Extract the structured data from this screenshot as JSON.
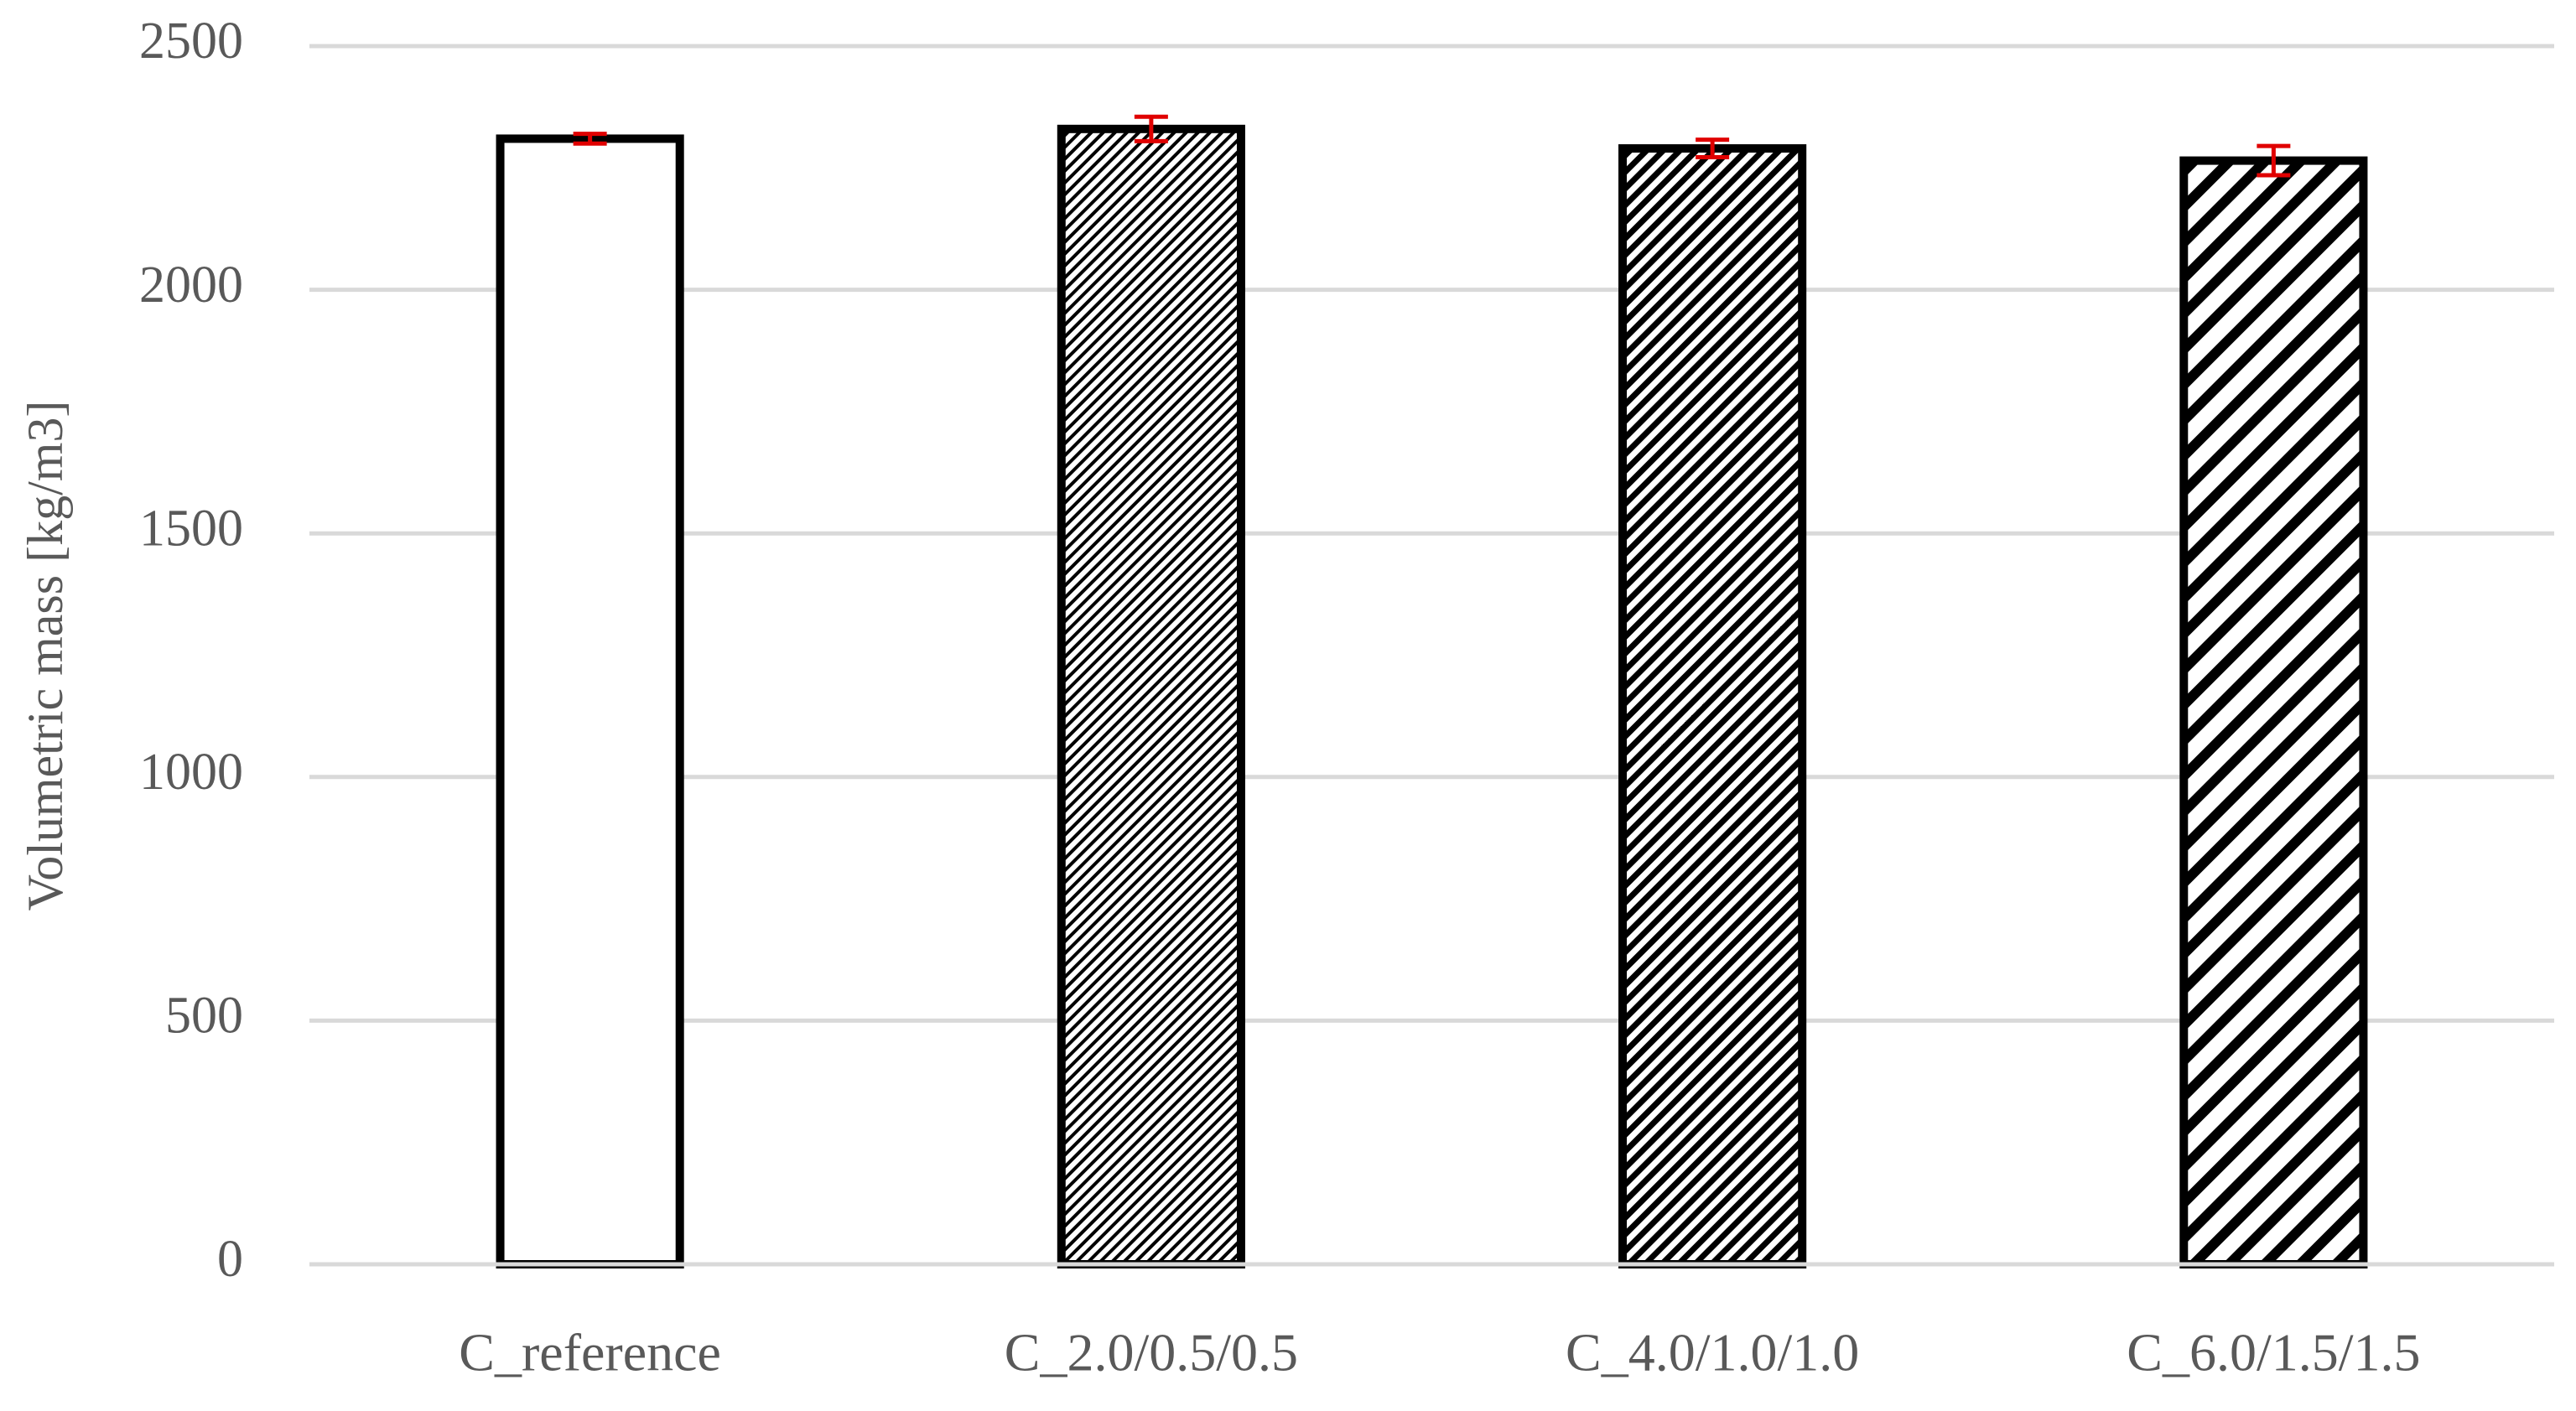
{
  "chart_data": {
    "type": "bar",
    "y_label": "Volumetric mass [kg/m3]",
    "categories": [
      "C_reference",
      "C_2.0/0.5/0.5",
      "C_4.0/1.0/1.0",
      "C_6.0/1.5/1.5"
    ],
    "values": [
      2310,
      2330,
      2290,
      2265
    ],
    "errors": [
      10,
      25,
      18,
      30
    ],
    "color": "#000000",
    "error_color": "#e00000",
    "ylim": [
      0,
      2500
    ],
    "yticks": [
      0,
      500,
      1000,
      1500,
      2000,
      2500
    ],
    "grid": true
  }
}
